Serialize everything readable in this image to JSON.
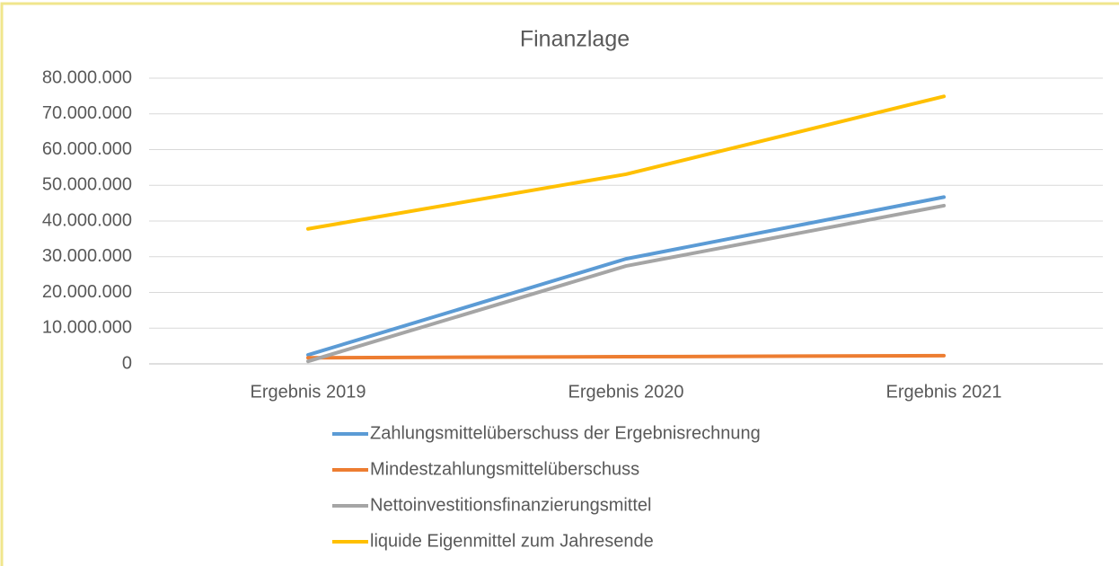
{
  "chart_data": {
    "type": "line",
    "title": "Finanzlage",
    "categories": [
      "Ergebnis 2019",
      "Ergebnis 2020",
      "Ergebnis 2021"
    ],
    "series": [
      {
        "name": "Zahlungsmittelüberschuss der Ergebnisrechnung",
        "color": "#5b9bd5",
        "values": [
          2500000,
          29400000,
          46700000
        ]
      },
      {
        "name": "Mindestzahlungsmittelüberschuss",
        "color": "#ed7d31",
        "values": [
          1700000,
          2000000,
          2300000
        ]
      },
      {
        "name": "Nettoinvestitionsfinanzierungsmittel",
        "color": "#a5a5a5",
        "values": [
          700000,
          27400000,
          44300000
        ]
      },
      {
        "name": "liquide Eigenmittel zum Jahresende",
        "color": "#ffc000",
        "values": [
          37800000,
          53100000,
          74900000
        ]
      }
    ],
    "ylim": [
      0,
      80000000
    ],
    "yticks": [
      0,
      {
        "value": 10000000,
        "label": "10.000.000"
      },
      {
        "value": 20000000,
        "label": "20.000.000"
      },
      {
        "value": 30000000,
        "label": "30.000.000"
      },
      {
        "value": 40000000,
        "label": "40.000.000"
      },
      {
        "value": 50000000,
        "label": "50.000.000"
      },
      {
        "value": 60000000,
        "label": "60.000.000"
      },
      {
        "value": 70000000,
        "label": "70.000.000"
      },
      {
        "value": 80000000,
        "label": "80.000.000"
      }
    ],
    "grid": true,
    "legend": "bottom"
  }
}
